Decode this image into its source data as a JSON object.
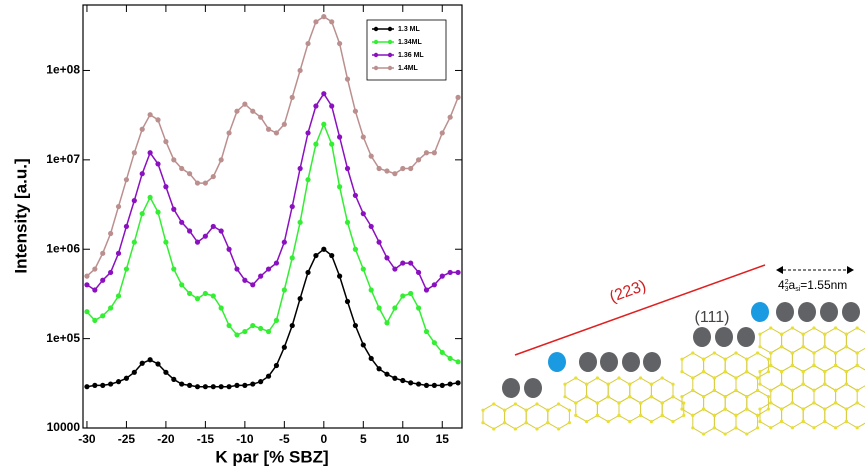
{
  "chart_data": {
    "type": "line",
    "yscale": "log",
    "x_label": "K par [% SBZ]",
    "y_label": "Intensity [a.u.]",
    "x": [
      -30,
      -29,
      -28,
      -27,
      -26,
      -25,
      -24,
      -23,
      -22,
      -21,
      -20,
      -19,
      -18,
      -17,
      -16,
      -15,
      -14,
      -13,
      -12,
      -11,
      -10,
      -9,
      -8,
      -7,
      -6,
      -5,
      -4,
      -3,
      -2,
      -1,
      0,
      1,
      2,
      3,
      4,
      5,
      6,
      7,
      8,
      9,
      10,
      11,
      12,
      13,
      14,
      15,
      16,
      17
    ],
    "series": [
      {
        "name": "1.3 ML",
        "color": "#000000",
        "values": [
          29000,
          30000,
          30000,
          31000,
          33000,
          36000,
          42000,
          53000,
          58000,
          52000,
          42000,
          35000,
          31000,
          30000,
          29000,
          29000,
          29000,
          29000,
          29000,
          30000,
          30000,
          31000,
          33000,
          38000,
          50000,
          80000,
          140000,
          280000,
          550000,
          850000,
          1000000,
          850000,
          500000,
          260000,
          140000,
          85000,
          60000,
          46000,
          40000,
          36000,
          34000,
          32000,
          31000,
          30000,
          30000,
          30000,
          31000,
          32000
        ]
      },
      {
        "name": "1.34ML",
        "color": "#33ee33",
        "values": [
          200000,
          160000,
          180000,
          220000,
          300000,
          600000,
          1200000,
          2500000,
          3800000,
          2600000,
          1200000,
          600000,
          400000,
          320000,
          280000,
          320000,
          300000,
          220000,
          140000,
          110000,
          120000,
          140000,
          130000,
          120000,
          160000,
          350000,
          800000,
          2000000,
          6000000,
          15000000,
          25000000,
          15000000,
          5000000,
          2000000,
          1000000,
          600000,
          350000,
          220000,
          150000,
          220000,
          300000,
          320000,
          220000,
          120000,
          90000,
          70000,
          60000,
          55000
        ]
      },
      {
        "name": "1.36 ML",
        "color": "#8b10c0",
        "values": [
          400000,
          350000,
          450000,
          550000,
          900000,
          1800000,
          3500000,
          7000000,
          12000000,
          9000000,
          5000000,
          2800000,
          2000000,
          1600000,
          1200000,
          1400000,
          1800000,
          1600000,
          1000000,
          600000,
          450000,
          400000,
          500000,
          600000,
          700000,
          1200000,
          3000000,
          8000000,
          20000000,
          40000000,
          55000000,
          40000000,
          18000000,
          8000000,
          4000000,
          2500000,
          1800000,
          1200000,
          800000,
          600000,
          700000,
          700000,
          550000,
          350000,
          400000,
          500000,
          550000,
          550000
        ]
      },
      {
        "name": "1.4ML",
        "color": "#bc8f8f",
        "values": [
          500000,
          600000,
          900000,
          1500000,
          3000000,
          6000000,
          12000000,
          22000000,
          32000000,
          28000000,
          16000000,
          10000000,
          8000000,
          7000000,
          5500000,
          5500000,
          6500000,
          10000000,
          20000000,
          35000000,
          42000000,
          35000000,
          30000000,
          22000000,
          20000000,
          25000000,
          50000000,
          100000000,
          200000000,
          350000000,
          400000000,
          350000000,
          200000000,
          80000000,
          35000000,
          18000000,
          11000000,
          8000000,
          7500000,
          7000000,
          8000000,
          8000000,
          10000000,
          12000000,
          12000000,
          20000000,
          30000000,
          50000000
        ]
      }
    ],
    "xlim": [
      -30.5,
      17.5
    ],
    "xticks": [
      -30,
      -25,
      -20,
      -15,
      -10,
      -5,
      0,
      5,
      10,
      15
    ],
    "ylim": [
      10000,
      540000000
    ],
    "yticks": [
      10000,
      {
        "value": 100000,
        "label": "1e+05"
      },
      {
        "value": 1000000,
        "label": "1e+06"
      },
      {
        "value": 10000000,
        "label": "1e+07"
      },
      {
        "value": 100000000,
        "label": "1e+08"
      }
    ],
    "legend": "upper right"
  },
  "diagram": {
    "plane_223": "(223)",
    "plane_111": "(111)",
    "width_label": {
      "whole": "4",
      "frac_num": "2",
      "frac_den": "3",
      "symbol": "a",
      "subscript": "si",
      "value": "=1.55nm"
    }
  }
}
